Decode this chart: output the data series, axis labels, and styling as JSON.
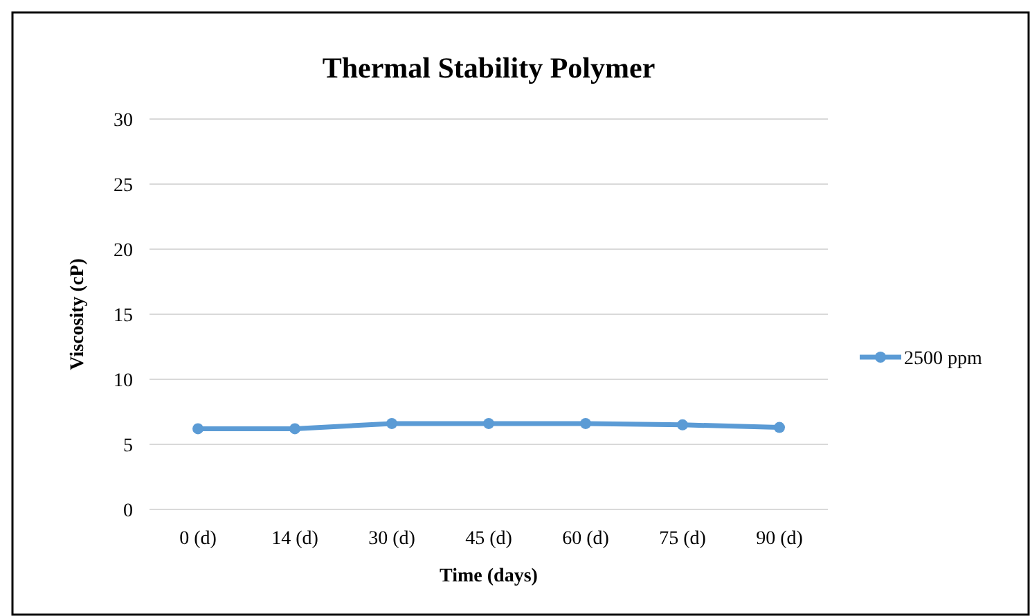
{
  "chart_data": {
    "type": "line",
    "title": "Thermal Stability Polymer",
    "xlabel": "Time (days)",
    "ylabel": "Viscosity (cP)",
    "categories": [
      "0 (d)",
      "14 (d)",
      "30 (d)",
      "45 (d)",
      "60 (d)",
      "75 (d)",
      "90 (d)"
    ],
    "series": [
      {
        "name": "2500 ppm",
        "color": "#5b9bd5",
        "values": [
          6.2,
          6.2,
          6.6,
          6.6,
          6.6,
          6.5,
          6.3
        ]
      }
    ],
    "ylim": [
      0,
      30
    ],
    "yticks": [
      0,
      5,
      10,
      15,
      20,
      25,
      30
    ],
    "grid": "y",
    "legend": "right",
    "marker": "circle"
  }
}
